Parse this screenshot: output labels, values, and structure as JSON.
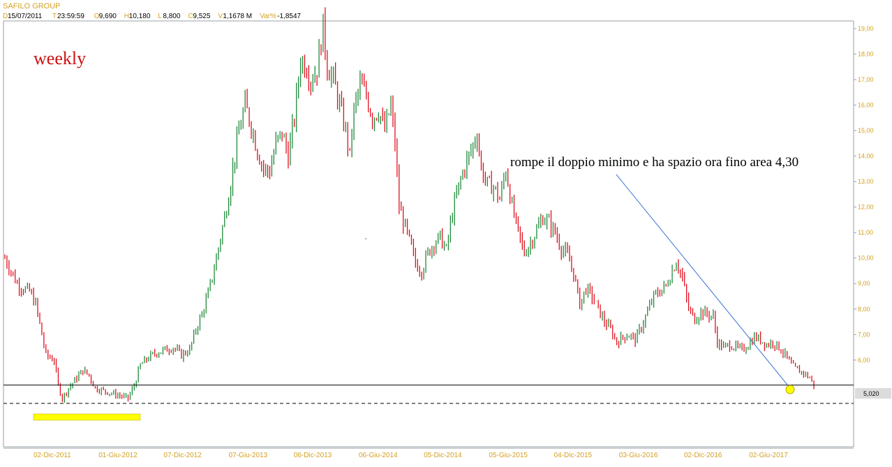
{
  "header": {
    "title": "SAFILO GROUP",
    "fields": [
      {
        "label": "D",
        "value": "15/07/2011"
      },
      {
        "label": "T",
        "value": "23:59:59"
      },
      {
        "label": "O",
        "value": "9,690"
      },
      {
        "label": "H",
        "value": "10,180"
      },
      {
        "label": "L",
        "value": "8,800"
      },
      {
        "label": "C",
        "value": "9,525"
      },
      {
        "label": "V",
        "value": "1,1678 M"
      },
      {
        "label": "Var%",
        "value": "-1,8547"
      }
    ]
  },
  "colors": {
    "up": "#1f8a3a",
    "down": "#e0101e",
    "axis_text": "#d4a020",
    "highlight": "#ffff00",
    "trendline": "#3b6fd6",
    "frame": "#9aa0a6"
  },
  "chart_data": {
    "type": "candlestick",
    "interval_label": "weekly",
    "x_ticks": [
      "02-Dic-2011",
      "01-Giu-2012",
      "07-Dic-2012",
      "07-Giu-2013",
      "06-Dic-2013",
      "06-Giu-2014",
      "05-Dic-2014",
      "05-Giu-2015",
      "04-Dic-2015",
      "03-Giu-2016",
      "02-Dic-2016",
      "02-Giu-2017"
    ],
    "y_ticks": [
      "19,00",
      "18,00",
      "17,00",
      "16,00",
      "15,00",
      "14,00",
      "13,00",
      "12,00",
      "11,00",
      "10,00",
      "9,00",
      "8,00",
      "7,00",
      "6,00"
    ],
    "y_tick_values": [
      19,
      18,
      17,
      16,
      15,
      14,
      13,
      12,
      11,
      10,
      9,
      8,
      7,
      6
    ],
    "ylim": [
      2.6,
      19.3
    ],
    "price_path": [
      [
        0,
        10.0
      ],
      [
        3,
        9.5
      ],
      [
        6,
        9.0
      ],
      [
        9,
        8.8
      ],
      [
        12,
        8.7
      ],
      [
        15,
        8.2
      ],
      [
        18,
        7.0
      ],
      [
        20,
        6.2
      ],
      [
        24,
        6.0
      ],
      [
        26,
        5.0
      ],
      [
        28,
        4.5
      ],
      [
        31,
        4.9
      ],
      [
        35,
        5.3
      ],
      [
        38,
        5.6
      ],
      [
        41,
        5.4
      ],
      [
        44,
        4.9
      ],
      [
        48,
        4.8
      ],
      [
        52,
        4.7
      ],
      [
        56,
        4.6
      ],
      [
        60,
        4.5
      ],
      [
        63,
        5.0
      ],
      [
        66,
        5.8
      ],
      [
        70,
        6.1
      ],
      [
        74,
        6.3
      ],
      [
        78,
        6.4
      ],
      [
        82,
        6.5
      ],
      [
        86,
        6.2
      ],
      [
        90,
        6.4
      ],
      [
        93,
        7.2
      ],
      [
        96,
        7.8
      ],
      [
        99,
        8.6
      ],
      [
        102,
        9.6
      ],
      [
        105,
        10.8
      ],
      [
        108,
        12.0
      ],
      [
        111,
        13.5
      ],
      [
        114,
        15.0
      ],
      [
        117,
        16.0
      ],
      [
        120,
        15.2
      ],
      [
        123,
        14.2
      ],
      [
        126,
        13.5
      ],
      [
        129,
        13.4
      ],
      [
        132,
        14.5
      ],
      [
        135,
        14.9
      ],
      [
        138,
        14.0
      ],
      [
        141,
        15.5
      ],
      [
        144,
        17.8
      ],
      [
        147,
        17.5
      ],
      [
        149,
        17.0
      ],
      [
        152,
        17.4
      ],
      [
        155,
        19.1
      ],
      [
        157,
        17.5
      ],
      [
        160,
        17.0
      ],
      [
        163,
        16.0
      ],
      [
        166,
        15.0
      ],
      [
        168,
        14.0
      ],
      [
        170,
        15.8
      ],
      [
        173,
        16.8
      ],
      [
        176,
        16.4
      ],
      [
        179,
        15.5
      ],
      [
        182,
        15.8
      ],
      [
        185,
        15.0
      ],
      [
        188,
        16.0
      ],
      [
        190,
        14.5
      ],
      [
        192,
        12.0
      ],
      [
        195,
        11.2
      ],
      [
        198,
        10.4
      ],
      [
        200,
        9.8
      ],
      [
        203,
        9.5
      ],
      [
        206,
        10.2
      ],
      [
        209,
        10.6
      ],
      [
        212,
        10.8
      ],
      [
        215,
        10.3
      ],
      [
        218,
        11.8
      ],
      [
        221,
        12.8
      ],
      [
        224,
        13.6
      ],
      [
        227,
        14.2
      ],
      [
        230,
        14.9
      ],
      [
        232,
        13.5
      ],
      [
        235,
        12.9
      ],
      [
        238,
        12.8
      ],
      [
        241,
        12.3
      ],
      [
        244,
        13.5
      ],
      [
        247,
        12.0
      ],
      [
        250,
        11.0
      ],
      [
        253,
        10.2
      ],
      [
        256,
        10.6
      ],
      [
        259,
        11.1
      ],
      [
        262,
        11.6
      ],
      [
        265,
        11.4
      ],
      [
        268,
        11.0
      ],
      [
        271,
        10.4
      ],
      [
        274,
        10.1
      ],
      [
        277,
        9.4
      ],
      [
        280,
        8.2
      ],
      [
        283,
        8.8
      ],
      [
        286,
        8.5
      ],
      [
        289,
        8.0
      ],
      [
        292,
        7.5
      ],
      [
        295,
        7.2
      ],
      [
        298,
        6.7
      ],
      [
        301,
        6.9
      ],
      [
        304,
        7.0
      ],
      [
        307,
        6.8
      ],
      [
        310,
        7.3
      ],
      [
        313,
        7.9
      ],
      [
        316,
        8.5
      ],
      [
        319,
        8.7
      ],
      [
        322,
        8.9
      ],
      [
        325,
        9.5
      ],
      [
        327,
        9.9
      ],
      [
        330,
        9.2
      ],
      [
        333,
        8.0
      ],
      [
        336,
        7.6
      ],
      [
        339,
        7.9
      ],
      [
        342,
        7.8
      ],
      [
        345,
        7.7
      ],
      [
        347,
        6.7
      ],
      [
        350,
        6.5
      ],
      [
        353,
        6.6
      ],
      [
        356,
        6.5
      ],
      [
        359,
        6.4
      ],
      [
        362,
        6.6
      ],
      [
        365,
        6.9
      ],
      [
        368,
        6.8
      ],
      [
        371,
        6.6
      ],
      [
        374,
        6.7
      ],
      [
        377,
        6.5
      ],
      [
        380,
        6.2
      ],
      [
        383,
        5.8
      ],
      [
        386,
        5.6
      ],
      [
        389,
        5.5
      ],
      [
        392,
        5.3
      ],
      [
        394,
        5.02
      ]
    ],
    "last_price": 5.02,
    "last_price_label": "5,020",
    "support_line": 5.02,
    "dashed_support": 4.3,
    "annotation": "rompe il doppio minimo e ha spazio ora fino area 4,30"
  }
}
